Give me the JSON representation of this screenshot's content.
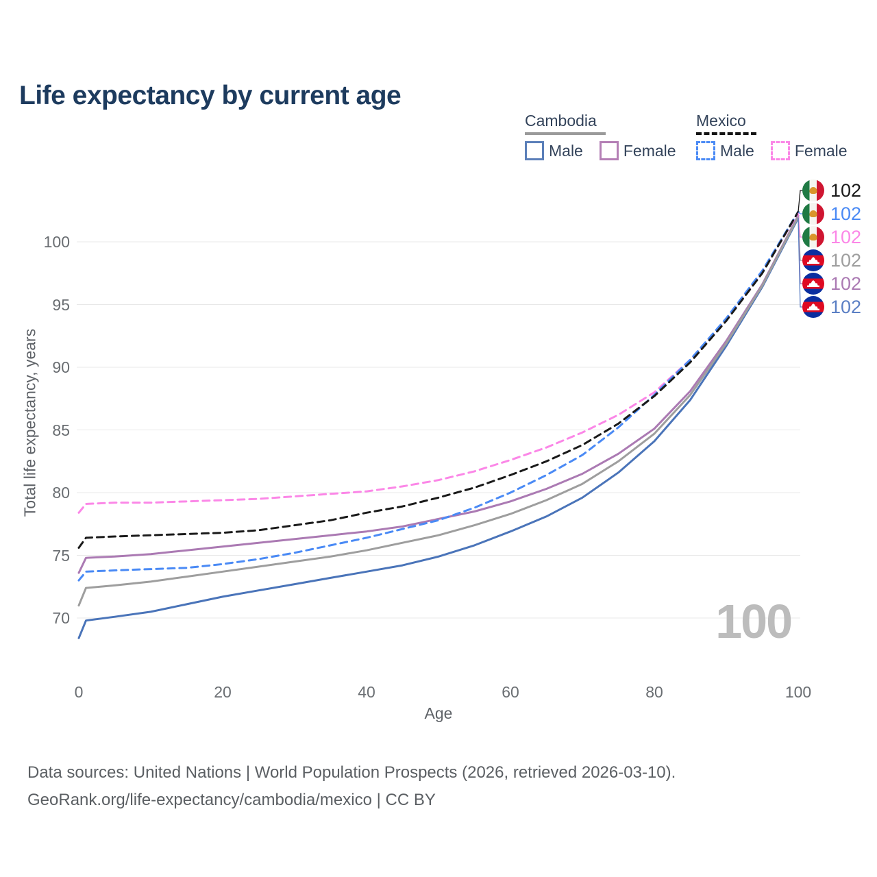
{
  "title": "Life expectancy by current age",
  "legend": {
    "groups": [
      {
        "id": "cambodia",
        "title": "Cambodia",
        "line_style": "solid",
        "underline_color": "#9a9a9a",
        "items": [
          {
            "id": "cambodia-male",
            "label": "Male",
            "color": "#5b7fb9",
            "dashed": false
          },
          {
            "id": "cambodia-female",
            "label": "Female",
            "color": "#b47fb5",
            "dashed": false
          }
        ]
      },
      {
        "id": "mexico",
        "title": "Mexico",
        "line_style": "dashed",
        "underline_color": "#141414",
        "items": [
          {
            "id": "mexico-male",
            "label": "Male",
            "color": "#4a8af5",
            "dashed": true
          },
          {
            "id": "mexico-female",
            "label": "Female",
            "color": "#fb87e7",
            "dashed": true
          }
        ]
      }
    ]
  },
  "chart_data": {
    "type": "line",
    "title": "Life expectancy by current age",
    "xlabel": "Age",
    "ylabel": "Total life expectancy, years",
    "xlim": [
      0,
      100
    ],
    "ylim": [
      70,
      100
    ],
    "xticks": [
      0,
      20,
      40,
      60,
      80,
      100
    ],
    "yticks": [
      70,
      75,
      80,
      85,
      90,
      95,
      100
    ],
    "grid": "horizontal",
    "legend_position": "top-right",
    "gridline_color": "#e8e8e8",
    "ages": [
      0,
      1,
      5,
      10,
      15,
      20,
      25,
      30,
      35,
      40,
      45,
      50,
      55,
      60,
      65,
      70,
      75,
      80,
      85,
      90,
      95,
      100
    ],
    "series": [
      {
        "id": "mexico-total",
        "name": "Mexico",
        "sex": "total",
        "color": "#1a1a1a",
        "label_color": "#1a1a1a",
        "dashed": true,
        "flag": "mx",
        "end_label": "102",
        "values": [
          75.6,
          76.4,
          76.5,
          76.6,
          76.7,
          76.8,
          77.0,
          77.4,
          77.8,
          78.4,
          78.9,
          79.6,
          80.4,
          81.4,
          82.5,
          83.8,
          85.5,
          87.7,
          90.4,
          93.7,
          97.5,
          102.4
        ]
      },
      {
        "id": "mexico-male",
        "name": "Mexico Male",
        "sex": "male",
        "color": "#4a8af5",
        "label_color": "#4a8af5",
        "dashed": true,
        "flag": "mx",
        "end_label": "102",
        "values": [
          73.0,
          73.7,
          73.8,
          73.9,
          74.0,
          74.3,
          74.7,
          75.2,
          75.8,
          76.4,
          77.1,
          77.8,
          78.8,
          80.0,
          81.4,
          83.0,
          85.2,
          87.8,
          90.6,
          93.9,
          97.7,
          102.4
        ]
      },
      {
        "id": "mexico-female",
        "name": "Mexico Female",
        "sex": "female",
        "color": "#fb87e7",
        "label_color": "#fb87e7",
        "dashed": true,
        "flag": "mx",
        "end_label": "102",
        "values": [
          78.4,
          79.1,
          79.2,
          79.2,
          79.3,
          79.4,
          79.5,
          79.7,
          79.9,
          80.1,
          80.5,
          81.0,
          81.7,
          82.6,
          83.6,
          84.8,
          86.2,
          88.0,
          90.6,
          93.8,
          97.6,
          102.3
        ]
      },
      {
        "id": "cambodia-total",
        "name": "Cambodia",
        "sex": "total",
        "color": "#9e9e9e",
        "label_color": "#9e9e9e",
        "dashed": false,
        "flag": "kh",
        "end_label": "102",
        "values": [
          71.0,
          72.4,
          72.6,
          72.9,
          73.3,
          73.7,
          74.1,
          74.5,
          74.9,
          75.4,
          76.0,
          76.6,
          77.4,
          78.3,
          79.4,
          80.7,
          82.5,
          84.7,
          87.8,
          91.9,
          96.5,
          102.0
        ]
      },
      {
        "id": "cambodia-female",
        "name": "Cambodia Female",
        "sex": "female",
        "color": "#ab7ab3",
        "label_color": "#ab7ab3",
        "dashed": false,
        "flag": "kh",
        "end_label": "102",
        "values": [
          73.6,
          74.8,
          74.9,
          75.1,
          75.4,
          75.7,
          76.0,
          76.3,
          76.6,
          76.9,
          77.3,
          77.9,
          78.5,
          79.3,
          80.3,
          81.5,
          83.1,
          85.1,
          88.1,
          92.1,
          96.6,
          102.1
        ]
      },
      {
        "id": "cambodia-male",
        "name": "Cambodia Male",
        "sex": "male",
        "color": "#4a74b9",
        "label_color": "#5b7fc4",
        "dashed": false,
        "flag": "kh",
        "end_label": "102",
        "values": [
          68.4,
          69.8,
          70.1,
          70.5,
          71.1,
          71.7,
          72.2,
          72.7,
          73.2,
          73.7,
          74.2,
          74.9,
          75.8,
          76.9,
          78.1,
          79.6,
          81.6,
          84.1,
          87.4,
          91.7,
          96.4,
          101.9
        ]
      }
    ]
  },
  "watermark": "100",
  "footer": {
    "line1": "Data sources: United Nations | World Population Prospects (2026, retrieved 2026-03-10).",
    "line2": "GeoRank.org/life-expectancy/cambodia/mexico | CC BY"
  }
}
